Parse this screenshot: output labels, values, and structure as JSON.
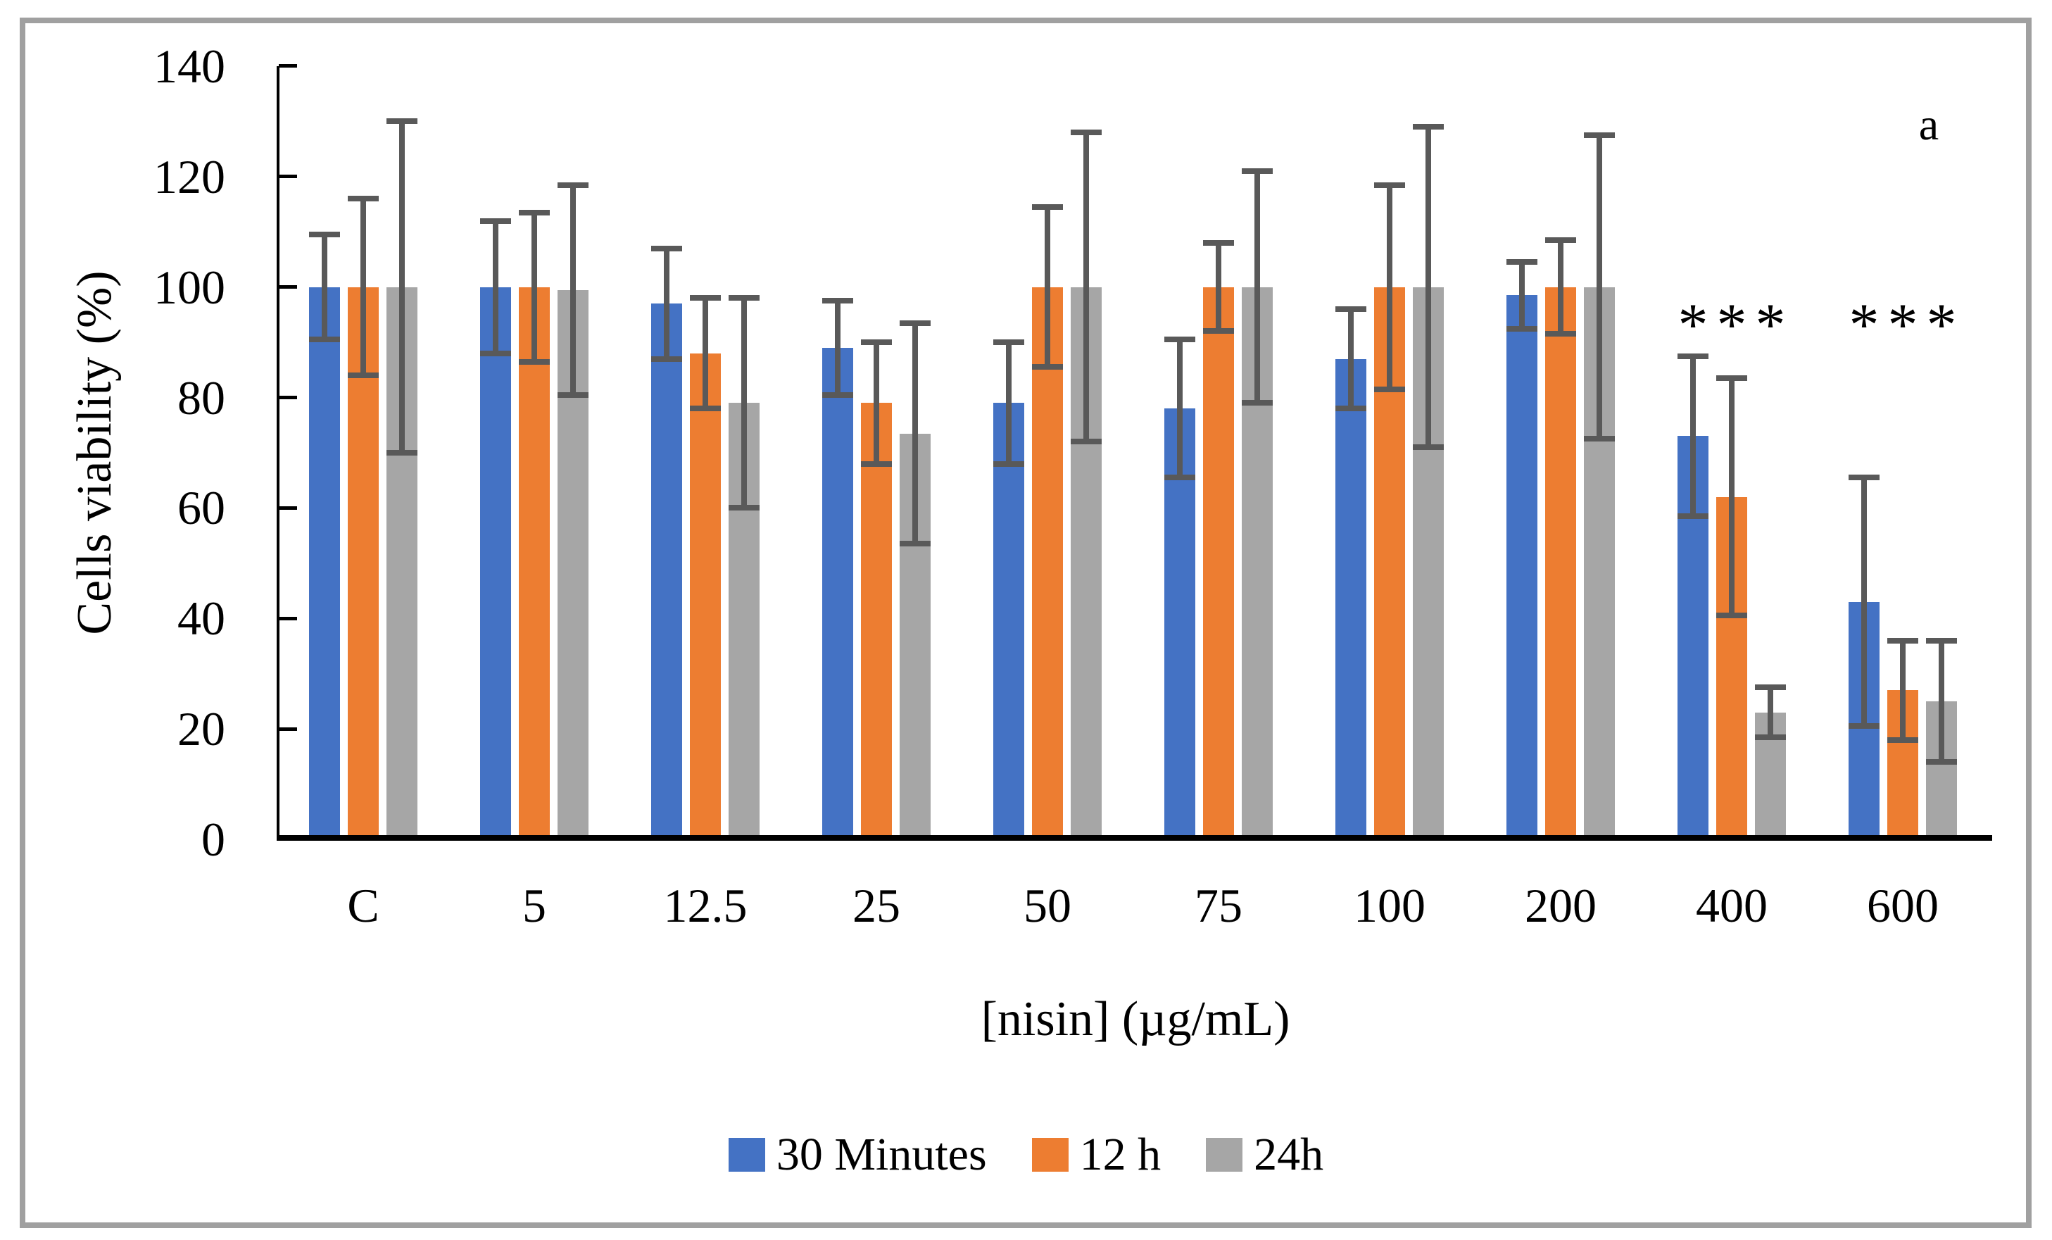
{
  "figure": {
    "border_color": "#A0A0A0",
    "background_color": "#FFFFFF",
    "panel_label": "a"
  },
  "chart_data": {
    "type": "bar",
    "title": "",
    "xlabel": "[nisin] (µg/mL)",
    "ylabel": "Cells viability (%)",
    "ylim": [
      0,
      140
    ],
    "y_ticks": [
      0,
      20,
      40,
      60,
      80,
      100,
      120,
      140
    ],
    "grid": false,
    "legend_position": "bottom",
    "axis_color": "#000000",
    "error_bar_color": "#595959",
    "categories": [
      "C",
      "5",
      "12.5",
      "25",
      "50",
      "75",
      "100",
      "200",
      "400",
      "600"
    ],
    "series": [
      {
        "name": "30 Minutes",
        "color": "#4472C4",
        "values": [
          100,
          100,
          97,
          89,
          79,
          78,
          87,
          98.5,
          73,
          43
        ],
        "errors": [
          9.5,
          12,
          10,
          8.5,
          11,
          12.5,
          9,
          6,
          14.5,
          22.5
        ]
      },
      {
        "name": "12 h",
        "color": "#ED7D31",
        "values": [
          100,
          100,
          88,
          79,
          100,
          100,
          100,
          100,
          62,
          27
        ],
        "errors": [
          16,
          13.5,
          10,
          11,
          14.5,
          8,
          18.5,
          8.5,
          21.5,
          9
        ]
      },
      {
        "name": "24h",
        "color": "#A6A6A6",
        "values": [
          100,
          99.5,
          79,
          73.5,
          100,
          100,
          100,
          100,
          23,
          25
        ],
        "errors": [
          30,
          19,
          19,
          20,
          28,
          21,
          29,
          27.5,
          4.5,
          11
        ]
      }
    ],
    "significance": {
      "marker": "*",
      "categories": [
        "400",
        "600"
      ],
      "applies_to": "each series bar in the marked categories"
    }
  }
}
